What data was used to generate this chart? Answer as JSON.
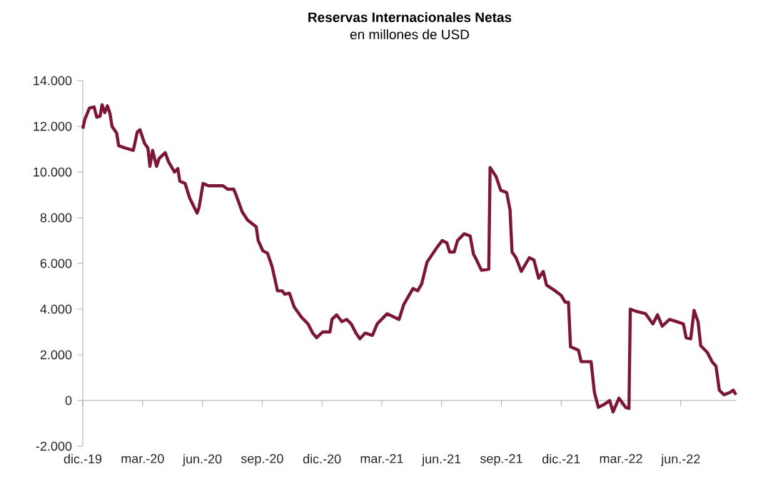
{
  "chart_data": {
    "type": "line",
    "title": "Reservas Internacionales Netas",
    "subtitle": "en millones de USD",
    "xlim": [
      "2019-12-01",
      "2022-08-25"
    ],
    "xticks": [
      {
        "value": "2019-12-01",
        "label": "dic.-19"
      },
      {
        "value": "2020-03-01",
        "label": "mar.-20"
      },
      {
        "value": "2020-06-01",
        "label": "jun.-20"
      },
      {
        "value": "2020-09-01",
        "label": "sep.-20"
      },
      {
        "value": "2020-12-01",
        "label": "dic.-20"
      },
      {
        "value": "2021-03-01",
        "label": "mar.-21"
      },
      {
        "value": "2021-06-01",
        "label": "jun.-21"
      },
      {
        "value": "2021-09-01",
        "label": "sep.-21"
      },
      {
        "value": "2021-12-01",
        "label": "dic.-21"
      },
      {
        "value": "2022-03-01",
        "label": "mar.-22"
      },
      {
        "value": "2022-06-01",
        "label": "jun.-22"
      }
    ],
    "ylim": [
      -2000,
      14000
    ],
    "yticks": [
      {
        "value": -2000,
        "label": "-2.000"
      },
      0,
      {
        "value": 2000,
        "label": "2.000"
      },
      {
        "value": 4000,
        "label": "4.000"
      },
      {
        "value": 6000,
        "label": "6.000"
      },
      {
        "value": 8000,
        "label": "8.000"
      },
      {
        "value": 10000,
        "label": "10.000"
      },
      {
        "value": 12000,
        "label": "12.000"
      },
      {
        "value": 14000,
        "label": "14.000"
      }
    ],
    "series": [
      {
        "color": "#7b1634",
        "x": [
          "2019-12-01",
          "2019-12-04",
          "2019-12-11",
          "2019-12-18",
          "2019-12-22",
          "2019-12-27",
          "2019-12-30",
          "2020-01-04",
          "2020-01-08",
          "2020-01-12",
          "2020-01-15",
          "2020-01-22",
          "2020-01-25",
          "2020-02-05",
          "2020-02-17",
          "2020-02-23",
          "2020-02-27",
          "2020-03-04",
          "2020-03-09",
          "2020-03-12",
          "2020-03-16",
          "2020-03-22",
          "2020-03-26",
          "2020-04-05",
          "2020-04-10",
          "2020-04-19",
          "2020-04-24",
          "2020-04-27",
          "2020-05-05",
          "2020-05-12",
          "2020-05-23",
          "2020-05-26",
          "2020-06-02",
          "2020-06-10",
          "2020-07-02",
          "2020-07-09",
          "2020-07-18",
          "2020-07-21",
          "2020-08-01",
          "2020-08-09",
          "2020-08-22",
          "2020-08-25",
          "2020-09-02",
          "2020-09-09",
          "2020-09-16",
          "2020-09-24",
          "2020-10-01",
          "2020-10-05",
          "2020-10-12",
          "2020-10-19",
          "2020-10-30",
          "2020-11-10",
          "2020-11-17",
          "2020-11-23",
          "2020-12-02",
          "2020-12-13",
          "2020-12-16",
          "2020-12-23",
          "2021-01-01",
          "2021-01-08",
          "2021-01-15",
          "2021-01-22",
          "2021-01-28",
          "2021-02-06",
          "2021-02-17",
          "2021-02-24",
          "2021-03-09",
          "2021-03-27",
          "2021-04-04",
          "2021-04-18",
          "2021-04-25",
          "2021-05-01",
          "2021-05-09",
          "2021-05-24",
          "2021-06-02",
          "2021-06-09",
          "2021-06-13",
          "2021-06-20",
          "2021-06-25",
          "2021-07-05",
          "2021-07-14",
          "2021-07-19",
          "2021-07-22",
          "2021-08-01",
          "2021-08-12",
          "2021-08-14",
          "2021-08-23",
          "2021-08-30",
          "2021-09-09",
          "2021-09-14",
          "2021-09-17",
          "2021-09-23",
          "2021-10-01",
          "2021-10-13",
          "2021-10-20",
          "2021-10-27",
          "2021-11-04",
          "2021-11-09",
          "2021-11-22",
          "2021-12-01",
          "2021-12-07",
          "2021-12-12",
          "2021-12-15",
          "2021-12-27",
          "2022-01-01",
          "2022-01-16",
          "2022-01-21",
          "2022-01-27",
          "2022-02-07",
          "2022-02-14",
          "2022-02-19",
          "2022-02-25",
          "2022-02-28",
          "2022-03-08",
          "2022-03-13",
          "2022-03-15",
          "2022-03-24",
          "2022-04-08",
          "2022-04-19",
          "2022-04-26",
          "2022-05-03",
          "2022-05-14",
          "2022-05-25",
          "2022-06-05",
          "2022-06-09",
          "2022-06-16",
          "2022-06-21",
          "2022-06-27",
          "2022-07-01",
          "2022-07-11",
          "2022-07-18",
          "2022-07-24",
          "2022-07-29",
          "2022-08-06",
          "2022-08-15",
          "2022-08-20",
          "2022-08-24"
        ],
        "values": [
          11900,
          12300,
          12800,
          12850,
          12400,
          12450,
          12950,
          12600,
          12900,
          12550,
          12000,
          11700,
          11150,
          11050,
          10950,
          11750,
          11850,
          11250,
          11050,
          10250,
          10950,
          10250,
          10600,
          10850,
          10450,
          10000,
          10150,
          9600,
          9500,
          8850,
          8200,
          8450,
          9500,
          9400,
          9400,
          9250,
          9250,
          9050,
          8250,
          7900,
          7600,
          7000,
          6550,
          6450,
          5850,
          4800,
          4800,
          4650,
          4700,
          4100,
          3650,
          3350,
          2950,
          2750,
          3000,
          3000,
          3550,
          3750,
          3450,
          3550,
          3350,
          2950,
          2700,
          2950,
          2850,
          3350,
          3800,
          3550,
          4200,
          4900,
          4800,
          5100,
          6050,
          6700,
          7000,
          6900,
          6500,
          6500,
          7000,
          7300,
          7200,
          6400,
          6250,
          5700,
          5750,
          10200,
          9800,
          9200,
          9100,
          8350,
          6500,
          6250,
          5650,
          6250,
          6150,
          5350,
          5650,
          5050,
          4800,
          4600,
          4300,
          4300,
          2350,
          2200,
          1700,
          1700,
          350,
          -300,
          -150,
          0,
          -500,
          -100,
          100,
          -300,
          -350,
          4000,
          3900,
          3800,
          3350,
          3750,
          3250,
          3550,
          3450,
          3350,
          2750,
          2700,
          3950,
          3450,
          2400,
          2100,
          1700,
          1500,
          450,
          250,
          350,
          450,
          250
        ]
      }
    ]
  }
}
